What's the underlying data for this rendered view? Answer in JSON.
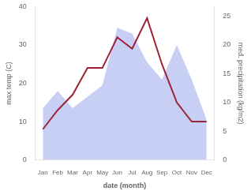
{
  "chart_data": {
    "type": "line",
    "categories": [
      "Jan",
      "Feb",
      "Mar",
      "Apr",
      "May",
      "Jun",
      "Jul",
      "Aug",
      "Sep",
      "Oct",
      "Nov",
      "Dec"
    ],
    "series": [
      {
        "type": "area",
        "axis": "y2",
        "color": "#c8cff5",
        "values": [
          9,
          12,
          9,
          11,
          13,
          23,
          22,
          17,
          14,
          20,
          14,
          7
        ]
      },
      {
        "type": "line",
        "axis": "y",
        "color": "#9b2335",
        "values": [
          8,
          13,
          17,
          24,
          24,
          32,
          29,
          37,
          25,
          15,
          10,
          10
        ]
      }
    ],
    "xlabel": "date (month)",
    "ylabel": "max temp (C)",
    "y2label": "med. precipitation (kg/m2)",
    "ylim": [
      0,
      40
    ],
    "yticks": [
      0,
      10,
      20,
      30,
      40
    ],
    "y2lim": [
      0,
      26.67
    ],
    "y2ticks": [
      0,
      5,
      10,
      15,
      20,
      25
    ],
    "grid": false
  }
}
